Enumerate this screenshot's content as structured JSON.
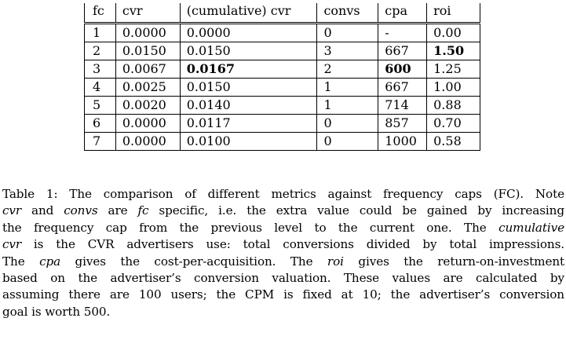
{
  "table": {
    "headers": [
      "fc",
      "cvr",
      "(cumulative) cvr",
      "convs",
      "cpa",
      "roi"
    ],
    "rows": [
      {
        "fc": "1",
        "cvr": "0.0000",
        "cum_cvr": "0.0000",
        "convs": "0",
        "cpa": "-",
        "roi": "0.00"
      },
      {
        "fc": "2",
        "cvr": "0.0150",
        "cum_cvr": "0.0150",
        "convs": "3",
        "cpa": "667",
        "roi": "1.50"
      },
      {
        "fc": "3",
        "cvr": "0.0067",
        "cum_cvr": "0.0167",
        "convs": "2",
        "cpa": "600",
        "roi": "1.25"
      },
      {
        "fc": "4",
        "cvr": "0.0025",
        "cum_cvr": "0.0150",
        "convs": "1",
        "cpa": "667",
        "roi": "1.00"
      },
      {
        "fc": "5",
        "cvr": "0.0020",
        "cum_cvr": "0.0140",
        "convs": "1",
        "cpa": "714",
        "roi": "0.88"
      },
      {
        "fc": "6",
        "cvr": "0.0000",
        "cum_cvr": "0.0117",
        "convs": "0",
        "cpa": "857",
        "roi": "0.70"
      },
      {
        "fc": "7",
        "cvr": "0.0000",
        "cum_cvr": "0.0100",
        "convs": "0",
        "cpa": "1000",
        "roi": "0.58"
      }
    ]
  },
  "caption": {
    "l1_a": "Table 1: The comparison of different metrics against frequency caps (FC). Note",
    "l2_cvr": "cvr",
    "l2_and": " and ",
    "l2_convs": "convs",
    "l2_are": " are ",
    "l2_fc": "fc",
    "l2_rest": " specific, i.e. the extra value could be gained by increasing",
    "l3_a": "the frequency cap from the previous level to the current one. The ",
    "l3_cum": "cumulative",
    "l4_cvr": "cvr",
    "l4_rest": " is the CVR advertisers use: total conversions divided by total impressions.",
    "l5_a": "The ",
    "l5_cpa": "cpa",
    "l5_b": " gives the cost-per-acquisition. The ",
    "l5_roi": "roi",
    "l5_c": " gives the return-on-investment",
    "l6": "based on the advertiser’s conversion valuation. These values are calculated by",
    "l7": "assuming there are 100 users; the CPM is fixed at 10; the advertiser’s conversion",
    "l8": "goal is worth 500."
  }
}
